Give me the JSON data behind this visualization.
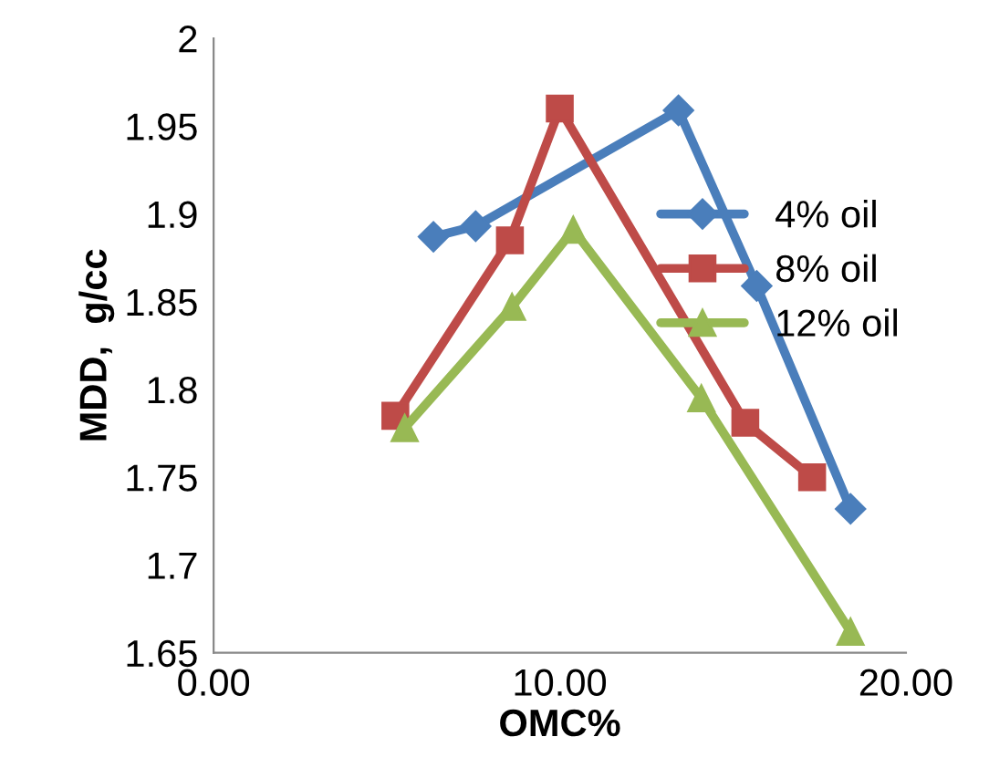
{
  "chart_data": {
    "type": "line",
    "xlabel": "OMC%",
    "ylabel": "MDD,  g/cc",
    "xlim": [
      0,
      20
    ],
    "xticks": [
      {
        "value": 0,
        "label": "0.00"
      },
      {
        "value": 10,
        "label": "10.00"
      },
      {
        "value": 20,
        "label": "20.00"
      }
    ],
    "ylim": [
      1.65,
      2
    ],
    "yticks": [
      1.65,
      1.7,
      1.75,
      1.8,
      1.85,
      1.9,
      1.95,
      2
    ],
    "grid": false,
    "legend": "right",
    "line_style": "solid",
    "series": [
      {
        "name": "4% oil",
        "color": "#4a7ebb",
        "marker": "diamond",
        "x": [
          6.35,
          7.57,
          13.43,
          15.69,
          18.4
        ],
        "values": [
          1.887,
          1.893,
          1.959,
          1.859,
          1.732
        ]
      },
      {
        "name": "8% oil",
        "color": "#be4b48",
        "marker": "square",
        "x": [
          5.25,
          8.56,
          10.0,
          15.36,
          17.29
        ],
        "values": [
          1.785,
          1.885,
          1.96,
          1.781,
          1.75
        ]
      },
      {
        "name": "12% oil",
        "color": "#98b954",
        "marker": "triangle",
        "x": [
          5.52,
          8.62,
          10.39,
          14.09,
          18.4
        ],
        "values": [
          1.778,
          1.847,
          1.891,
          1.795,
          1.662
        ]
      }
    ]
  }
}
